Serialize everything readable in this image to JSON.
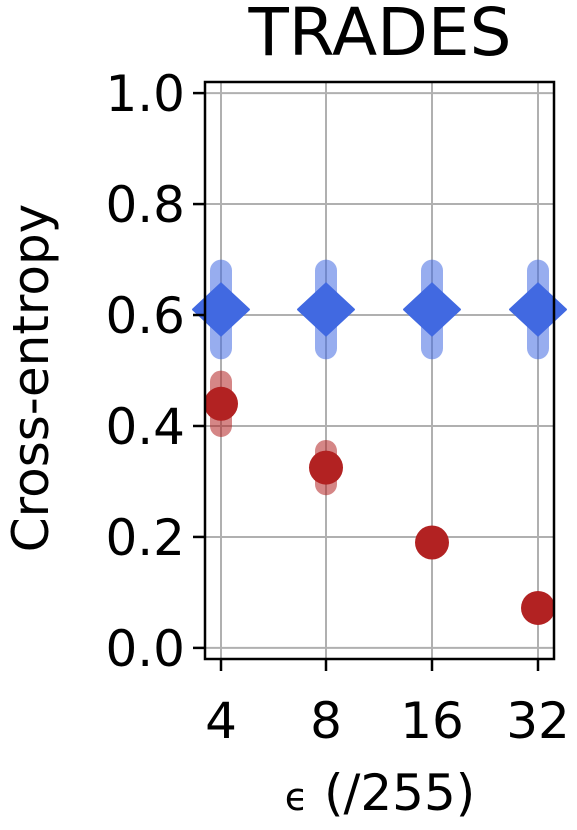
{
  "chart_data": {
    "type": "scatter",
    "title": "TRADES",
    "xlabel_symbol": "ϵ",
    "xlabel_rest": " (/255)",
    "ylabel": "Cross-entropy",
    "x_scale": "categorical",
    "categories": [
      "4",
      "8",
      "16",
      "32"
    ],
    "ylim": [
      -0.02,
      1.02
    ],
    "yticks": [
      0.0,
      0.2,
      0.4,
      0.6,
      0.8,
      1.0
    ],
    "ytick_labels": [
      "0.0",
      "0.2",
      "0.4",
      "0.6",
      "0.8",
      "1.0"
    ],
    "grid": true,
    "series": [
      {
        "marker": "diamond",
        "color": "#4169E1",
        "values": [
          0.61,
          0.61,
          0.61,
          0.61
        ],
        "err_low": [
          0.54,
          0.54,
          0.54,
          0.54
        ],
        "err_high": [
          0.68,
          0.68,
          0.68,
          0.68
        ]
      },
      {
        "marker": "circle",
        "color": "#B22222",
        "values": [
          0.44,
          0.325,
          0.19,
          0.072
        ],
        "err_low": [
          0.4,
          0.295,
          0.18,
          0.068
        ],
        "err_high": [
          0.48,
          0.355,
          0.2,
          0.076
        ]
      }
    ]
  }
}
